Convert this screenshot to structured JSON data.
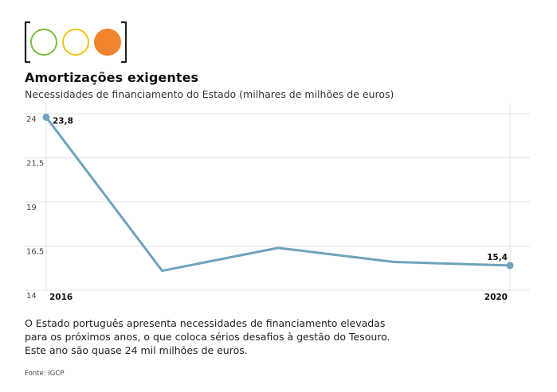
{
  "logo": {
    "name": "traffic-light-icon",
    "circles": [
      {
        "color": "#7cbd3e",
        "filled": false
      },
      {
        "color": "#f1c40f",
        "filled": false
      },
      {
        "color": "#f0852d",
        "filled": true
      }
    ]
  },
  "header": {
    "title": "Amortizações exigentes",
    "subtitle": "Necessidades de financiamento do Estado (milhares de milhões de euros)"
  },
  "chart_data": {
    "type": "line",
    "x": [
      2016,
      2017,
      2018,
      2019,
      2020
    ],
    "x_tick_labels": [
      "2016",
      "2020"
    ],
    "series": [
      {
        "values": [
          23.8,
          15.1,
          16.4,
          15.6,
          15.4
        ],
        "color": "#6fa3bc"
      }
    ],
    "data_labels": [
      {
        "index": 0,
        "text": "23,8"
      },
      {
        "index": 4,
        "text": "15,4"
      }
    ],
    "ylim": [
      14,
      24
    ],
    "y_ticks": [
      24,
      21.5,
      19,
      16.5,
      14
    ],
    "y_tick_labels": [
      "24",
      "21,5",
      "19",
      "16,5",
      "14"
    ],
    "grid": true
  },
  "description": {
    "lines": [
      "O Estado português apresenta necessidades de financiamento elevadas",
      "para os próximos anos, o que coloca sérios desafios à gestão do Tesouro.",
      "Este ano são quase 24 mil milhões de euros."
    ]
  },
  "source": "Fonte: IGCP"
}
